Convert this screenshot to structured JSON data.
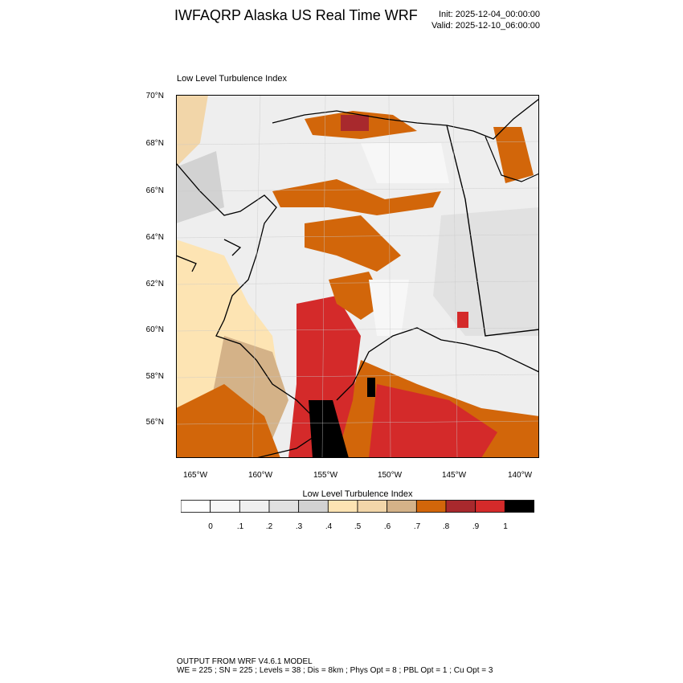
{
  "header": {
    "title": "IWFAQRP Alaska US Real Time WRF",
    "init": "Init: 2025-12-04_00:00:00",
    "valid": "Valid: 2025-12-10_06:00:00"
  },
  "plot": {
    "subtitle": "Low Level Turbulence Index",
    "lat_labels": [
      "70°N",
      "68°N",
      "66°N",
      "64°N",
      "62°N",
      "60°N",
      "58°N",
      "56°N"
    ],
    "lon_labels": [
      "165°W",
      "160°W",
      "155°W",
      "150°W",
      "145°W",
      "140°W"
    ]
  },
  "colorbar": {
    "title": "Low Level Turbulence Index",
    "labels": [
      "0",
      ".1",
      ".2",
      ".3",
      ".4",
      ".5",
      ".6",
      ".7",
      ".8",
      ".9",
      "1"
    ],
    "colors": [
      "#ffffff",
      "#f7f7f7",
      "#efefef",
      "#e1e1e1",
      "#d2d2d2",
      "#fde4b3",
      "#f2d6a9",
      "#d4b288",
      "#d2660a",
      "#a8292d",
      "#d42a2a",
      "#000000"
    ]
  },
  "footer": {
    "line1": "OUTPUT FROM WRF V4.6.1 MODEL",
    "line2": "WE = 225 ; SN = 225 ; Levels = 38 ; Dis = 8km ; Phys Opt = 8 ; PBL Opt = 1 ; Cu Opt = 3"
  }
}
